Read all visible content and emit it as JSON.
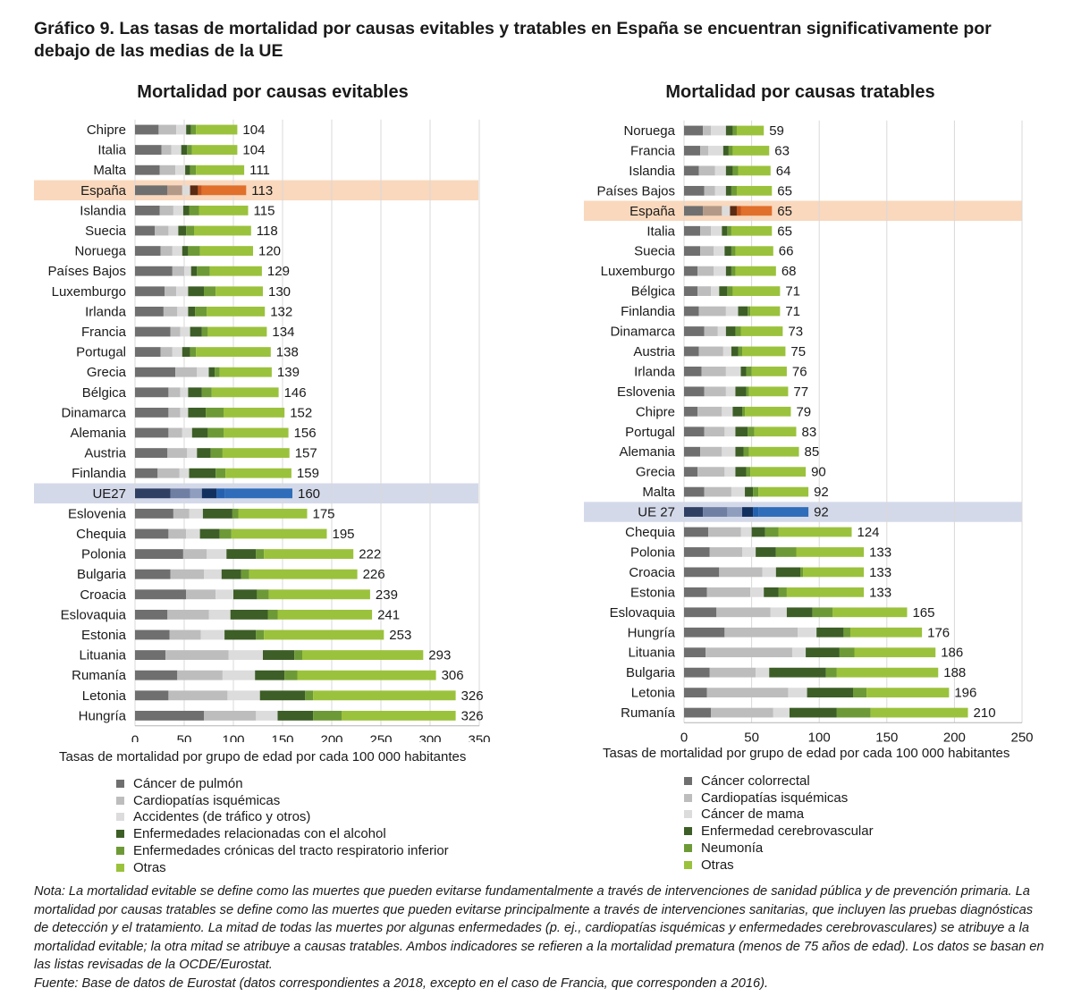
{
  "title": "Gráfico 9. Las tasas de mortalidad por causas evitables y tratables en España se encuentran significativamente por debajo de las medias de la UE",
  "note": "Nota: La mortalidad evitable se define como las muertes que pueden evitarse fundamentalmente a través de intervenciones de sanidad pública y de prevención primaria. La mortalidad por causas tratables se define como las muertes que pueden evitarse principalmente a través de intervenciones sanitarias, que incluyen las pruebas diagnósticas de detección y el tratamiento. La mitad de todas las muertes por algunas enfermedades (p. ej., cardiopatías isquémicas y enfermedades cerebrovasculares) se atribuye a la mortalidad evitable; la otra mitad se atribuye a causas tratables. Ambos indicadores se refieren a la mortalidad prematura (menos de 75 años de edad). Los datos se basan en las listas revisadas de la OCDE/Eurostat.",
  "source": "Fuente: Base de datos de Eurostat (datos correspondientes a 2018, excepto en el caso de Francia, que corresponden a 2016).",
  "colors": {
    "segments": [
      "#6f6f6f",
      "#bdbdbd",
      "#dcdcdc",
      "#3d5e26",
      "#6d9a36",
      "#9bc23c"
    ],
    "spain_segments": [
      "#6f6f6f",
      "#b39a88",
      "#dcdcdc",
      "#5a2b12",
      "#c4551e",
      "#e0702b"
    ],
    "eu_segments": [
      "#2f3f63",
      "#6f7fa3",
      "#8f9ebf",
      "#12305e",
      "#2460ad",
      "#2f6cb9"
    ],
    "spain_band": "#f9d8bd",
    "eu_band": "#d4d9ea"
  },
  "chart_data": [
    {
      "type": "bar",
      "orientation": "horizontal",
      "stacked": true,
      "title": "Mortalidad por causas evitables",
      "xlabel": "Tasas de mortalidad por grupo de edad por cada 100 000 habitantes",
      "xlim": [
        0,
        350
      ],
      "xticks": [
        0,
        50,
        100,
        150,
        200,
        250,
        300,
        350
      ],
      "highlight": {
        "spain": "España",
        "eu": "UE27"
      },
      "categories": [
        "Chipre",
        "Italia",
        "Malta",
        "España",
        "Islandia",
        "Suecia",
        "Noruega",
        "Países Bajos",
        "Luxemburgo",
        "Irlanda",
        "Francia",
        "Portugal",
        "Grecia",
        "Bélgica",
        "Dinamarca",
        "Alemania",
        "Austria",
        "Finlandia",
        "UE27",
        "Eslovenia",
        "Chequia",
        "Polonia",
        "Bulgaria",
        "Croacia",
        "Eslovaquia",
        "Estonia",
        "Lituania",
        "Rumanía",
        "Letonia",
        "Hungría"
      ],
      "totals": [
        104,
        104,
        111,
        113,
        115,
        118,
        120,
        129,
        130,
        132,
        134,
        138,
        139,
        146,
        152,
        156,
        157,
        159,
        160,
        175,
        195,
        222,
        226,
        239,
        241,
        253,
        293,
        306,
        326,
        326
      ],
      "series": [
        {
          "name": "Cáncer de pulmón",
          "values": [
            24,
            27,
            25,
            33,
            25,
            20,
            26,
            38,
            30,
            29,
            36,
            26,
            41,
            34,
            34,
            34,
            33,
            23,
            36,
            39,
            34,
            49,
            36,
            52,
            33,
            35,
            31,
            43,
            34,
            70
          ]
        },
        {
          "name": "Cardiopatías isquémicas",
          "values": [
            18,
            10,
            16,
            15,
            14,
            14,
            12,
            12,
            12,
            14,
            10,
            12,
            22,
            12,
            12,
            14,
            20,
            22,
            20,
            16,
            18,
            24,
            34,
            30,
            42,
            32,
            64,
            46,
            60,
            53
          ]
        },
        {
          "name": "Accidentes (de tráfico y otros)",
          "values": [
            10,
            10,
            10,
            8,
            10,
            10,
            10,
            7,
            12,
            11,
            10,
            10,
            12,
            8,
            8,
            10,
            10,
            10,
            12,
            14,
            14,
            20,
            18,
            18,
            22,
            24,
            35,
            33,
            33,
            22
          ]
        },
        {
          "name": "Enfermedades relacionadas con el alcohol",
          "values": [
            5,
            6,
            5,
            8,
            6,
            8,
            6,
            6,
            16,
            7,
            12,
            8,
            6,
            14,
            18,
            16,
            14,
            27,
            15,
            30,
            20,
            30,
            20,
            24,
            38,
            32,
            32,
            30,
            46,
            36
          ]
        },
        {
          "name": "Enfermedades crónicas del tracto respiratorio inferior",
          "values": [
            5,
            5,
            6,
            4,
            10,
            8,
            12,
            13,
            12,
            12,
            6,
            6,
            5,
            10,
            18,
            16,
            12,
            10,
            8,
            6,
            12,
            8,
            8,
            12,
            10,
            8,
            8,
            13,
            8,
            29
          ]
        },
        {
          "name": "Otras",
          "values": [
            42,
            46,
            49,
            45,
            50,
            58,
            54,
            53,
            48,
            59,
            60,
            76,
            53,
            68,
            62,
            66,
            68,
            67,
            69,
            70,
            97,
            91,
            110,
            103,
            96,
            122,
            123,
            141,
            145,
            116
          ]
        }
      ]
    },
    {
      "type": "bar",
      "orientation": "horizontal",
      "stacked": true,
      "title": "Mortalidad por causas tratables",
      "xlabel": "Tasas de mortalidad por grupo de edad por cada 100 000 habitantes",
      "xlim": [
        0,
        250
      ],
      "xticks": [
        0,
        50,
        100,
        150,
        200,
        250
      ],
      "highlight": {
        "spain": "España",
        "eu": "UE 27"
      },
      "categories": [
        "Noruega",
        "Francia",
        "Islandia",
        "Países Bajos",
        "España",
        "Italia",
        "Suecia",
        "Luxemburgo",
        "Bélgica",
        "Finlandia",
        "Dinamarca",
        "Austria",
        "Irlanda",
        "Eslovenia",
        "Chipre",
        "Portugal",
        "Alemania",
        "Grecia",
        "Malta",
        "UE 27",
        "Chequia",
        "Polonia",
        "Croacia",
        "Estonia",
        "Eslovaquia",
        "Hungría",
        "Lituania",
        "Bulgaria",
        "Letonia",
        "Rumanía"
      ],
      "totals": [
        59,
        63,
        64,
        65,
        65,
        65,
        66,
        68,
        71,
        71,
        73,
        75,
        76,
        77,
        79,
        83,
        85,
        90,
        92,
        92,
        124,
        133,
        133,
        133,
        165,
        176,
        186,
        188,
        196,
        210
      ],
      "series": [
        {
          "name": "Cáncer colorrectal",
          "values": [
            14,
            12,
            11,
            15,
            14,
            12,
            12,
            10,
            10,
            11,
            15,
            11,
            13,
            15,
            10,
            15,
            12,
            10,
            15,
            14,
            18,
            19,
            26,
            17,
            24,
            30,
            16,
            19,
            17,
            20
          ]
        },
        {
          "name": "Cardiopatías isquémicas",
          "values": [
            6,
            6,
            12,
            8,
            14,
            8,
            10,
            12,
            10,
            20,
            10,
            18,
            18,
            16,
            18,
            15,
            16,
            20,
            20,
            18,
            24,
            24,
            32,
            32,
            40,
            54,
            64,
            34,
            60,
            46
          ]
        },
        {
          "name": "Cáncer de mama",
          "values": [
            11,
            11,
            8,
            8,
            6,
            8,
            8,
            9,
            6,
            9,
            6,
            6,
            11,
            7,
            8,
            8,
            10,
            8,
            10,
            11,
            8,
            10,
            10,
            10,
            12,
            14,
            10,
            10,
            14,
            12
          ]
        },
        {
          "name": "Enfermedad cerebrovascular",
          "values": [
            5,
            4,
            5,
            4,
            5,
            4,
            5,
            4,
            6,
            7,
            7,
            5,
            4,
            8,
            7,
            9,
            6,
            8,
            6,
            8,
            10,
            15,
            18,
            11,
            19,
            20,
            25,
            42,
            34,
            35
          ]
        },
        {
          "name": "Neumonía",
          "values": [
            3,
            3,
            4,
            4,
            3,
            3,
            3,
            3,
            4,
            2,
            4,
            3,
            4,
            2,
            2,
            5,
            4,
            3,
            4,
            4,
            10,
            15,
            2,
            6,
            15,
            5,
            11,
            8,
            10,
            25
          ]
        },
        {
          "name": "Otras",
          "values": [
            20,
            27,
            24,
            26,
            23,
            30,
            28,
            30,
            35,
            22,
            31,
            32,
            26,
            29,
            34,
            31,
            37,
            41,
            37,
            37,
            54,
            50,
            45,
            57,
            55,
            53,
            60,
            75,
            61,
            72
          ]
        }
      ]
    }
  ]
}
